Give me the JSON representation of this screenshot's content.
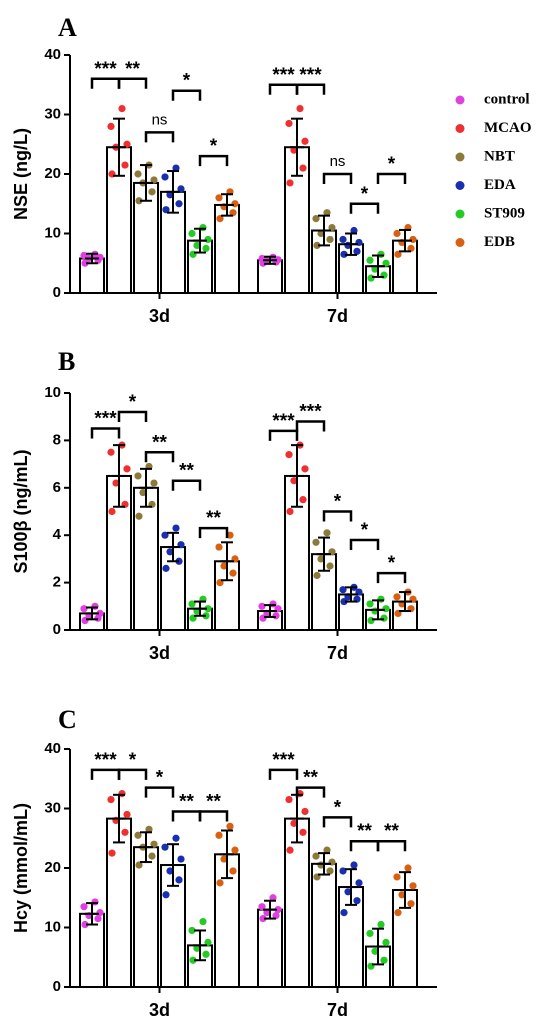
{
  "legend": {
    "placement": "right",
    "items": [
      {
        "label": "control",
        "color": "#e040e0"
      },
      {
        "label": "MCAO",
        "color": "#f03030"
      },
      {
        "label": "NBT",
        "color": "#8c7a3a"
      },
      {
        "label": "EDA",
        "color": "#1a2fb0"
      },
      {
        "label": "ST909",
        "color": "#22cc22"
      },
      {
        "label": "EDB",
        "color": "#d86010"
      }
    ]
  },
  "chart_data": [
    {
      "type": "bar",
      "panel": "A",
      "ylabel": "NSE (ng/L)",
      "ylim": [
        0,
        40
      ],
      "yticks": [
        "0",
        "10",
        "20",
        "30",
        "40"
      ],
      "categories": [
        "3d",
        "7d"
      ],
      "groups": [
        "control",
        "MCAO",
        "NBT",
        "EDA",
        "ST909",
        "EDB"
      ],
      "means": [
        [
          5.8,
          24.5,
          18.5,
          17.0,
          8.8,
          14.8
        ],
        [
          5.5,
          24.5,
          10.5,
          8.2,
          4.5,
          8.8
        ]
      ],
      "sd": [
        [
          0.8,
          4.8,
          3.0,
          3.5,
          2.0,
          1.8
        ],
        [
          0.6,
          4.8,
          2.5,
          1.8,
          1.8,
          1.8
        ]
      ],
      "points": [
        [
          [
            5.0,
            5.5,
            5.8,
            6.0,
            6.3,
            6.5
          ],
          [
            20.0,
            21.5,
            24.5,
            25.0,
            28.0,
            31.0
          ],
          [
            15.5,
            17.0,
            18.5,
            19.0,
            20.0,
            21.5
          ],
          [
            14.0,
            15.0,
            16.5,
            17.5,
            19.5,
            21.0
          ],
          [
            6.5,
            7.5,
            8.0,
            9.0,
            10.0,
            11.0
          ],
          [
            12.5,
            13.5,
            14.5,
            15.0,
            16.0,
            17.0
          ]
        ],
        [
          [
            5.0,
            5.2,
            5.4,
            5.6,
            5.8,
            6.0
          ],
          [
            18.5,
            21.0,
            24.0,
            25.5,
            28.5,
            31.0
          ],
          [
            8.0,
            9.0,
            10.0,
            11.0,
            12.5,
            13.5
          ],
          [
            6.5,
            7.0,
            8.0,
            8.5,
            9.0,
            10.5
          ],
          [
            2.5,
            3.0,
            4.0,
            5.0,
            5.5,
            6.5
          ],
          [
            6.5,
            7.5,
            8.5,
            9.0,
            10.0,
            11.0
          ]
        ]
      ],
      "significance": [
        {
          "cat": 0,
          "from": 0,
          "to": 1,
          "label": "***",
          "y": 36
        },
        {
          "cat": 0,
          "from": 1,
          "to": 2,
          "label": "**",
          "y": 36
        },
        {
          "cat": 0,
          "from": 2,
          "to": 3,
          "label": "ns",
          "y": 27
        },
        {
          "cat": 0,
          "from": 3,
          "to": 4,
          "label": "*",
          "y": 34
        },
        {
          "cat": 0,
          "from": 4,
          "to": 5,
          "label": "*",
          "y": 23
        },
        {
          "cat": 1,
          "from": 0,
          "to": 1,
          "label": "***",
          "y": 35
        },
        {
          "cat": 1,
          "from": 1,
          "to": 2,
          "label": "***",
          "y": 35
        },
        {
          "cat": 1,
          "from": 2,
          "to": 3,
          "label": "ns",
          "y": 20
        },
        {
          "cat": 1,
          "from": 3,
          "to": 4,
          "label": "*",
          "y": 15
        },
        {
          "cat": 1,
          "from": 4,
          "to": 5,
          "label": "*",
          "y": 20
        }
      ]
    },
    {
      "type": "bar",
      "panel": "B",
      "ylabel": "S100β (ng/mL)",
      "ylim": [
        0,
        10
      ],
      "yticks": [
        "0",
        "2",
        "4",
        "6",
        "8",
        "10"
      ],
      "categories": [
        "3d",
        "7d"
      ],
      "groups": [
        "control",
        "MCAO",
        "NBT",
        "EDA",
        "ST909",
        "EDB"
      ],
      "means": [
        [
          0.7,
          6.5,
          6.0,
          3.5,
          0.9,
          2.9
        ],
        [
          0.8,
          6.5,
          3.2,
          1.5,
          0.85,
          1.2
        ]
      ],
      "sd": [
        [
          0.25,
          1.3,
          0.8,
          0.6,
          0.3,
          0.8
        ],
        [
          0.25,
          1.3,
          0.7,
          0.3,
          0.4,
          0.4
        ]
      ],
      "points": [
        [
          [
            0.4,
            0.5,
            0.6,
            0.7,
            0.9,
            1.0
          ],
          [
            5.0,
            5.3,
            6.2,
            6.8,
            7.5,
            7.8
          ],
          [
            4.8,
            5.3,
            5.8,
            6.2,
            6.5,
            6.9
          ],
          [
            2.6,
            2.9,
            3.3,
            3.6,
            4.0,
            4.3
          ],
          [
            0.5,
            0.6,
            0.8,
            0.9,
            1.1,
            1.3
          ],
          [
            2.0,
            2.4,
            2.7,
            3.0,
            3.5,
            4.0
          ]
        ],
        [
          [
            0.5,
            0.6,
            0.7,
            0.9,
            1.0,
            1.1
          ],
          [
            5.0,
            5.5,
            6.3,
            6.8,
            7.4,
            7.8
          ],
          [
            2.3,
            2.7,
            3.0,
            3.3,
            3.7,
            4.1
          ],
          [
            1.2,
            1.3,
            1.4,
            1.6,
            1.7,
            1.8
          ],
          [
            0.4,
            0.5,
            0.8,
            0.9,
            1.1,
            1.3
          ],
          [
            0.7,
            0.9,
            1.1,
            1.3,
            1.4,
            1.6
          ]
        ]
      ],
      "significance": [
        {
          "cat": 0,
          "from": 0,
          "to": 1,
          "label": "***",
          "y": 8.5
        },
        {
          "cat": 0,
          "from": 1,
          "to": 2,
          "label": "*",
          "y": 9.2
        },
        {
          "cat": 0,
          "from": 2,
          "to": 3,
          "label": "**",
          "y": 7.5
        },
        {
          "cat": 0,
          "from": 3,
          "to": 4,
          "label": "**",
          "y": 6.3
        },
        {
          "cat": 0,
          "from": 4,
          "to": 5,
          "label": "**",
          "y": 4.3
        },
        {
          "cat": 1,
          "from": 0,
          "to": 1,
          "label": "***",
          "y": 8.4
        },
        {
          "cat": 1,
          "from": 1,
          "to": 2,
          "label": "***",
          "y": 8.8
        },
        {
          "cat": 1,
          "from": 2,
          "to": 3,
          "label": "*",
          "y": 5.0
        },
        {
          "cat": 1,
          "from": 3,
          "to": 4,
          "label": "*",
          "y": 3.8
        },
        {
          "cat": 1,
          "from": 4,
          "to": 5,
          "label": "*",
          "y": 2.4
        }
      ]
    },
    {
      "type": "bar",
      "panel": "C",
      "ylabel": "Hcy (mmol/mL)",
      "ylim": [
        0,
        40
      ],
      "yticks": [
        "0",
        "10",
        "20",
        "30",
        "40"
      ],
      "categories": [
        "3d",
        "7d"
      ],
      "groups": [
        "control",
        "MCAO",
        "NBT",
        "EDA",
        "ST909",
        "EDB"
      ],
      "means": [
        [
          12.3,
          28.3,
          23.5,
          20.5,
          7.0,
          22.3
        ],
        [
          13.0,
          28.3,
          20.7,
          16.8,
          6.8,
          16.3
        ]
      ],
      "sd": [
        [
          1.8,
          4.0,
          2.5,
          3.5,
          2.5,
          4.0
        ],
        [
          1.5,
          4.0,
          1.8,
          3.0,
          3.0,
          3.0
        ]
      ],
      "points": [
        [
          [
            10.5,
            11.5,
            12.0,
            12.5,
            13.5,
            14.3
          ],
          [
            22.5,
            26.0,
            28.0,
            29.0,
            31.5,
            32.5
          ],
          [
            20.5,
            22.0,
            23.5,
            24.0,
            25.5,
            26.5
          ],
          [
            15.5,
            18.0,
            19.5,
            21.5,
            23.5,
            25.0
          ],
          [
            4.5,
            5.5,
            6.5,
            7.5,
            9.5,
            11.0
          ],
          [
            17.5,
            19.5,
            21.5,
            23.0,
            25.5,
            27.0
          ]
        ],
        [
          [
            11.5,
            12.0,
            12.5,
            13.0,
            13.5,
            15.0
          ],
          [
            23.0,
            26.0,
            27.5,
            29.5,
            31.5,
            32.5
          ],
          [
            18.5,
            19.5,
            20.5,
            21.0,
            22.0,
            23.0
          ],
          [
            12.5,
            14.5,
            16.0,
            17.5,
            19.5,
            20.5
          ],
          [
            3.5,
            4.5,
            6.0,
            7.5,
            9.0,
            10.5
          ],
          [
            12.5,
            14.0,
            15.5,
            17.0,
            18.5,
            20.0
          ]
        ]
      ],
      "significance": [
        {
          "cat": 0,
          "from": 0,
          "to": 1,
          "label": "***",
          "y": 36.5
        },
        {
          "cat": 0,
          "from": 1,
          "to": 2,
          "label": "*",
          "y": 36.5
        },
        {
          "cat": 0,
          "from": 2,
          "to": 3,
          "label": "*",
          "y": 33.5
        },
        {
          "cat": 0,
          "from": 3,
          "to": 4,
          "label": "**",
          "y": 29.5
        },
        {
          "cat": 0,
          "from": 4,
          "to": 5,
          "label": "**",
          "y": 29.5
        },
        {
          "cat": 1,
          "from": 0,
          "to": 1,
          "label": "***",
          "y": 36.5
        },
        {
          "cat": 1,
          "from": 1,
          "to": 2,
          "label": "**",
          "y": 33.5
        },
        {
          "cat": 1,
          "from": 2,
          "to": 3,
          "label": "*",
          "y": 28.5
        },
        {
          "cat": 1,
          "from": 3,
          "to": 4,
          "label": "**",
          "y": 24.5
        },
        {
          "cat": 1,
          "from": 4,
          "to": 5,
          "label": "**",
          "y": 24.5
        }
      ]
    }
  ]
}
